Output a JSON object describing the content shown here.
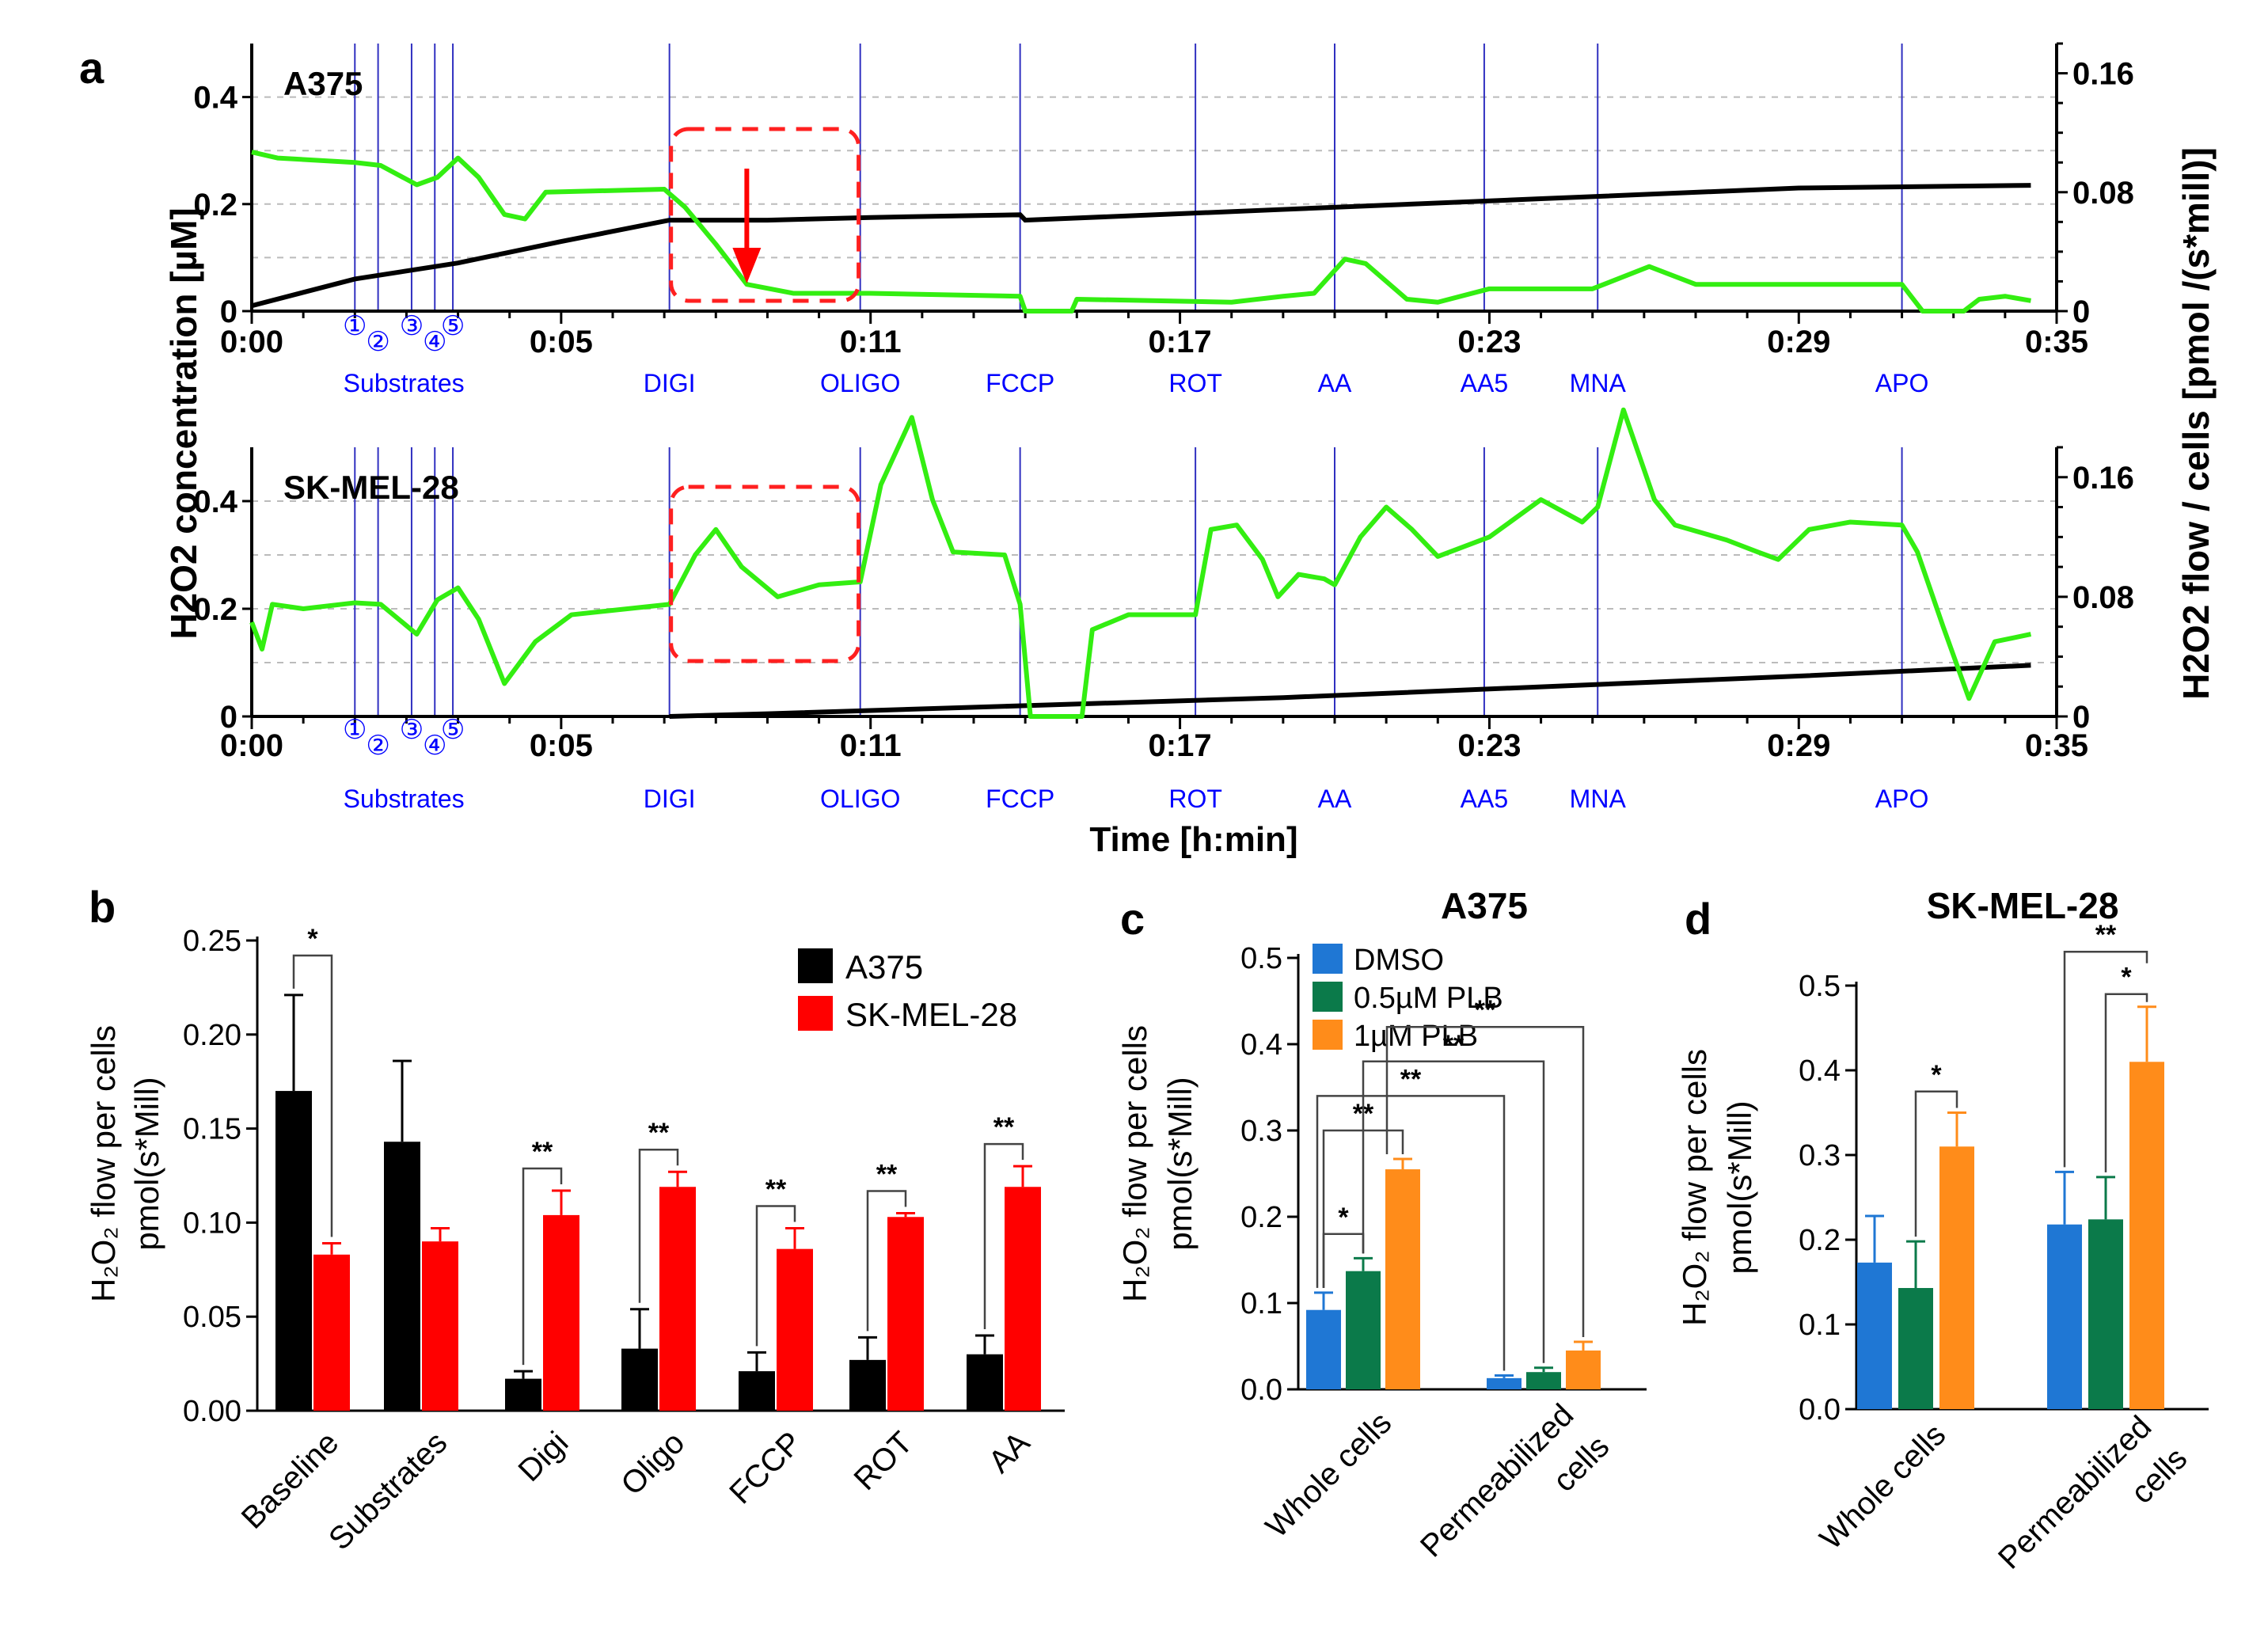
{
  "colors": {
    "black": "#000000",
    "red": "#ff0000",
    "green": "#33ee11",
    "blue": "#0000ff",
    "grid": "#bbbbbb",
    "dashed_red": "#ff2020",
    "dmso": "#1f77d4",
    "plb05": "#0b7a4a",
    "plb1": "#ff8c1a"
  },
  "panel_labels": {
    "a": "a",
    "b": "b",
    "c": "c",
    "d": "d"
  },
  "panel_a": {
    "ylabel_left": "H2O2 concentration [µM]",
    "ylabel_right": "H2O2 flow / cells [pmol /(s*mill)]",
    "xlabel": "Time [h:min]",
    "time_ticks": [
      "0:00",
      "0:05",
      "0:11",
      "0:17",
      "0:23",
      "0:29",
      "0:35"
    ],
    "ylim_left": [
      0,
      0.5
    ],
    "ylim_right": [
      0,
      0.18
    ],
    "yticks_left": [
      "0",
      "0.2",
      "0.4"
    ],
    "yticks_right": [
      "0",
      "0.08",
      "0.16"
    ],
    "events": [
      {
        "t": 2.0,
        "label": ""
      },
      {
        "t": 2.45,
        "label": ""
      },
      {
        "t": 3.1,
        "label": ""
      },
      {
        "t": 3.55,
        "label": ""
      },
      {
        "t": 3.9,
        "label": ""
      },
      {
        "t": 8.1,
        "label": "DIGI"
      },
      {
        "t": 11.8,
        "label": "OLIGO"
      },
      {
        "t": 14.9,
        "label": "FCCP"
      },
      {
        "t": 18.3,
        "label": "ROT"
      },
      {
        "t": 21.0,
        "label": "AA"
      },
      {
        "t": 23.9,
        "label": "AA5"
      },
      {
        "t": 26.1,
        "label": "MNA"
      },
      {
        "t": 32.0,
        "label": "APO"
      }
    ],
    "circle_numbers": [
      "①",
      "②",
      "③",
      "④",
      "⑤"
    ],
    "substrates_label": "Substrates",
    "charts": [
      {
        "name": "A375",
        "black_conc": [
          [
            0,
            0.01
          ],
          [
            2,
            0.06
          ],
          [
            4,
            0.09
          ],
          [
            6,
            0.13
          ],
          [
            8.1,
            0.17
          ],
          [
            10,
            0.17
          ],
          [
            12,
            0.175
          ],
          [
            14.9,
            0.18
          ],
          [
            15,
            0.17
          ],
          [
            20,
            0.19
          ],
          [
            25,
            0.21
          ],
          [
            30,
            0.23
          ],
          [
            34.5,
            0.235
          ]
        ],
        "green_flow": [
          [
            0,
            0.107
          ],
          [
            0.5,
            0.103
          ],
          [
            2,
            0.1
          ],
          [
            2.5,
            0.098
          ],
          [
            3.2,
            0.085
          ],
          [
            3.6,
            0.09
          ],
          [
            4,
            0.103
          ],
          [
            4.4,
            0.09
          ],
          [
            4.9,
            0.065
          ],
          [
            5.3,
            0.062
          ],
          [
            5.7,
            0.08
          ],
          [
            8,
            0.082
          ],
          [
            8.4,
            0.07
          ],
          [
            9,
            0.045
          ],
          [
            9.6,
            0.018
          ],
          [
            10.5,
            0.012
          ],
          [
            12,
            0.012
          ],
          [
            14.9,
            0.01
          ],
          [
            15,
            0.0
          ],
          [
            15.9,
            0.0
          ],
          [
            16,
            0.008
          ],
          [
            19,
            0.006
          ],
          [
            20,
            0.01
          ],
          [
            20.6,
            0.012
          ],
          [
            21.2,
            0.035
          ],
          [
            21.6,
            0.032
          ],
          [
            22.4,
            0.008
          ],
          [
            23,
            0.006
          ],
          [
            24,
            0.015
          ],
          [
            26,
            0.015
          ],
          [
            27.1,
            0.03
          ],
          [
            28,
            0.018
          ],
          [
            32,
            0.018
          ],
          [
            32.4,
            0.0
          ],
          [
            33.2,
            0.0
          ],
          [
            33.5,
            0.008
          ],
          [
            34,
            0.01
          ],
          [
            34.5,
            0.007
          ]
        ]
      },
      {
        "name": "SK-MEL-28",
        "black_conc": [
          [
            8.1,
            0.0
          ],
          [
            10,
            0.005
          ],
          [
            15,
            0.02
          ],
          [
            20,
            0.035
          ],
          [
            25,
            0.055
          ],
          [
            30,
            0.075
          ],
          [
            34.5,
            0.095
          ]
        ],
        "green_flow": [
          [
            0,
            0.063
          ],
          [
            0.2,
            0.045
          ],
          [
            0.4,
            0.075
          ],
          [
            1,
            0.072
          ],
          [
            2,
            0.076
          ],
          [
            2.5,
            0.075
          ],
          [
            3.2,
            0.055
          ],
          [
            3.6,
            0.078
          ],
          [
            4,
            0.086
          ],
          [
            4.4,
            0.065
          ],
          [
            4.9,
            0.022
          ],
          [
            5.5,
            0.05
          ],
          [
            6.2,
            0.068
          ],
          [
            8.1,
            0.075
          ],
          [
            8.6,
            0.108
          ],
          [
            9,
            0.125
          ],
          [
            9.5,
            0.1
          ],
          [
            10.2,
            0.08
          ],
          [
            11,
            0.088
          ],
          [
            11.8,
            0.09
          ],
          [
            12.2,
            0.155
          ],
          [
            12.8,
            0.2
          ],
          [
            13.2,
            0.145
          ],
          [
            13.6,
            0.11
          ],
          [
            14.6,
            0.108
          ],
          [
            14.9,
            0.075
          ],
          [
            15.1,
            0.0
          ],
          [
            16.1,
            0.0
          ],
          [
            16.3,
            0.058
          ],
          [
            17,
            0.068
          ],
          [
            18.3,
            0.068
          ],
          [
            18.6,
            0.125
          ],
          [
            19.1,
            0.128
          ],
          [
            19.6,
            0.105
          ],
          [
            19.9,
            0.08
          ],
          [
            20.3,
            0.095
          ],
          [
            20.8,
            0.092
          ],
          [
            21,
            0.088
          ],
          [
            21.5,
            0.12
          ],
          [
            22,
            0.14
          ],
          [
            22.5,
            0.125
          ],
          [
            23,
            0.107
          ],
          [
            24,
            0.12
          ],
          [
            25,
            0.145
          ],
          [
            25.8,
            0.13
          ],
          [
            26.1,
            0.14
          ],
          [
            26.6,
            0.205
          ],
          [
            27.2,
            0.145
          ],
          [
            27.6,
            0.128
          ],
          [
            28.6,
            0.118
          ],
          [
            29.2,
            0.11
          ],
          [
            29.6,
            0.105
          ],
          [
            30.2,
            0.125
          ],
          [
            31,
            0.13
          ],
          [
            32,
            0.128
          ],
          [
            32.3,
            0.11
          ],
          [
            32.8,
            0.06
          ],
          [
            33.3,
            0.012
          ],
          [
            33.8,
            0.05
          ],
          [
            34.5,
            0.055
          ]
        ]
      }
    ]
  },
  "panel_b": {
    "ylabel_line1": "H₂O₂ flow per cells",
    "ylabel_line2": "pmol(s*Mill)",
    "yticks": [
      "0.00",
      "0.05",
      "0.10",
      "0.15",
      "0.20",
      "0.25"
    ],
    "legend": [
      "A375",
      "SK-MEL-28"
    ],
    "significance": [
      "*",
      "**",
      "**",
      "**",
      "**",
      "**"
    ]
  },
  "panel_c": {
    "title": "A375",
    "ylabel_line1": "H₂O₂ flow per cells",
    "ylabel_line2": "pmol(s*Mill)",
    "yticks": [
      "0.0",
      "0.1",
      "0.2",
      "0.3",
      "0.4",
      "0.5"
    ],
    "legend": [
      "DMSO",
      "0.5µM PLB",
      "1µM PLB"
    ],
    "groups": [
      "Whole cells",
      "Permeabilized cells"
    ],
    "significance": [
      "*",
      "**",
      "**",
      "**",
      "**"
    ]
  },
  "panel_d": {
    "title": "SK-MEL-28",
    "ylabel_line1": "H₂O₂ flow per cells",
    "ylabel_line2": "pmol(s*Mill)",
    "yticks": [
      "0.0",
      "0.1",
      "0.2",
      "0.3",
      "0.4",
      "0.5"
    ],
    "groups": [
      "Whole cells",
      "Permeabilized cells"
    ],
    "significance": [
      "*",
      "*",
      "**"
    ]
  },
  "chart_data": [
    {
      "type": "line",
      "title": "A375",
      "xlabel": "Time [h:min]",
      "ylabel": "H2O2 concentration [µM]",
      "y2label": "H2O2 flow / cells [pmol /(s*mill)]",
      "xlim": [
        0,
        35
      ],
      "ylim": [
        0,
        0.5
      ],
      "y2lim": [
        0,
        0.18
      ],
      "series": [
        {
          "name": "H2O2 concentration",
          "axis": "left"
        },
        {
          "name": "H2O2 flow / cells",
          "axis": "right"
        }
      ]
    },
    {
      "type": "line",
      "title": "SK-MEL-28",
      "xlabel": "Time [h:min]",
      "ylabel": "H2O2 concentration [µM]",
      "y2label": "H2O2 flow / cells [pmol /(s*mill)]",
      "xlim": [
        0,
        35
      ],
      "ylim": [
        0,
        0.5
      ],
      "y2lim": [
        0,
        0.18
      ],
      "series": [
        {
          "name": "H2O2 concentration",
          "axis": "left"
        },
        {
          "name": "H2O2 flow / cells",
          "axis": "right"
        }
      ]
    },
    {
      "type": "bar",
      "title": "",
      "ylabel": "H2O2 flow per cells pmol(s*Mill)",
      "ylim": [
        0,
        0.25
      ],
      "categories": [
        "Baseline",
        "Substrates",
        "Digi",
        "Oligo",
        "FCCP",
        "ROT",
        "AA"
      ],
      "series": [
        {
          "name": "A375",
          "values": [
            0.17,
            0.143,
            0.017,
            0.033,
            0.021,
            0.027,
            0.03
          ],
          "errors": [
            0.051,
            0.043,
            0.004,
            0.021,
            0.01,
            0.012,
            0.01
          ]
        },
        {
          "name": "SK-MEL-28",
          "values": [
            0.083,
            0.09,
            0.104,
            0.119,
            0.086,
            0.103,
            0.119
          ],
          "errors": [
            0.006,
            0.007,
            0.013,
            0.008,
            0.011,
            0.002,
            0.011
          ]
        }
      ]
    },
    {
      "type": "bar",
      "title": "A375",
      "ylabel": "H2O2 flow per cells pmol(s*Mill)",
      "ylim": [
        0,
        0.5
      ],
      "categories": [
        "Whole cells",
        "Permeabilized cells"
      ],
      "series": [
        {
          "name": "DMSO",
          "values": [
            0.092,
            0.013
          ],
          "errors": [
            0.02,
            0.003
          ]
        },
        {
          "name": "0.5µM PLB",
          "values": [
            0.137,
            0.02
          ],
          "errors": [
            0.015,
            0.005
          ]
        },
        {
          "name": "1µM PLB",
          "values": [
            0.255,
            0.045
          ],
          "errors": [
            0.012,
            0.01
          ]
        }
      ]
    },
    {
      "type": "bar",
      "title": "SK-MEL-28",
      "ylabel": "H2O2 flow per cells pmol(s*Mill)",
      "ylim": [
        0,
        0.5
      ],
      "categories": [
        "Whole cells",
        "Permeabilized cells"
      ],
      "series": [
        {
          "name": "DMSO",
          "values": [
            0.173,
            0.218
          ],
          "errors": [
            0.055,
            0.062
          ]
        },
        {
          "name": "0.5µM PLB",
          "values": [
            0.143,
            0.224
          ],
          "errors": [
            0.055,
            0.05
          ]
        },
        {
          "name": "1µM PLB",
          "values": [
            0.31,
            0.41
          ],
          "errors": [
            0.04,
            0.065
          ]
        }
      ]
    }
  ]
}
